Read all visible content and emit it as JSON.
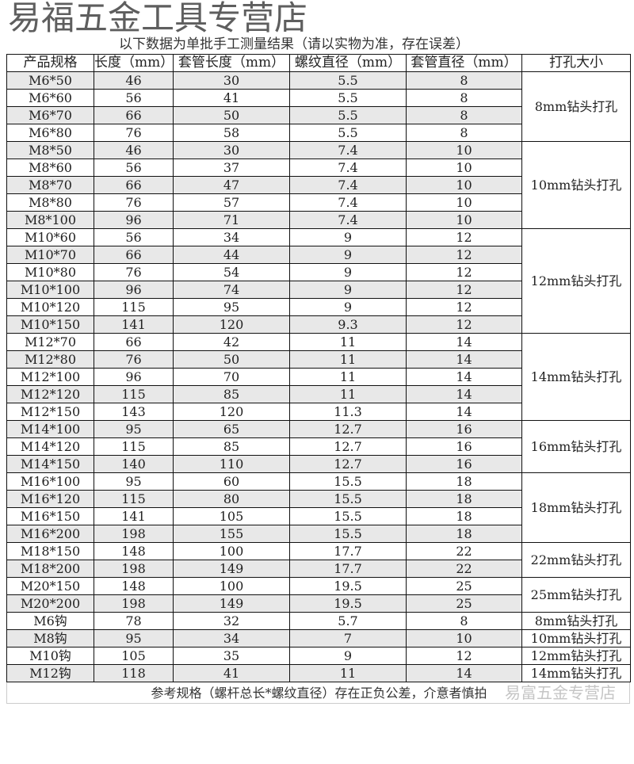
{
  "title": "以下数据为单批手工测量结果（请以实物为准，存在误差）",
  "watermark_top": "易福五金工具专营店",
  "watermark_bottom": "易富五金专营店",
  "headers": [
    "产品规格",
    "长度（mm）",
    "套管长度（mm）",
    "螺纹直径（mm）",
    "套管直径（mm）",
    "打孔大小"
  ],
  "rows": [
    [
      "M6*50",
      "46",
      "30",
      "5.5",
      "8"
    ],
    [
      "M6*60",
      "56",
      "41",
      "5.5",
      "8"
    ],
    [
      "M6*70",
      "66",
      "50",
      "5.5",
      "8"
    ],
    [
      "M6*80",
      "76",
      "58",
      "5.5",
      "8"
    ],
    [
      "M8*50",
      "46",
      "30",
      "7.4",
      "10"
    ],
    [
      "M8*60",
      "56",
      "37",
      "7.4",
      "10"
    ],
    [
      "M8*70",
      "66",
      "47",
      "7.4",
      "10"
    ],
    [
      "M8*80",
      "76",
      "57",
      "7.4",
      "10"
    ],
    [
      "M8*100",
      "96",
      "71",
      "7.4",
      "10"
    ],
    [
      "M10*60",
      "56",
      "34",
      "9",
      "12"
    ],
    [
      "M10*70",
      "66",
      "44",
      "9",
      "12"
    ],
    [
      "M10*80",
      "76",
      "54",
      "9",
      "12"
    ],
    [
      "M10*100",
      "96",
      "74",
      "9",
      "12"
    ],
    [
      "M10*120",
      "115",
      "95",
      "9",
      "12"
    ],
    [
      "M10*150",
      "141",
      "120",
      "9.3",
      "12"
    ],
    [
      "M12*70",
      "66",
      "42",
      "11",
      "14"
    ],
    [
      "M12*80",
      "76",
      "50",
      "11",
      "14"
    ],
    [
      "M12*100",
      "96",
      "70",
      "11",
      "14"
    ],
    [
      "M12*120",
      "115",
      "85",
      "11",
      "14"
    ],
    [
      "M12*150",
      "143",
      "120",
      "11.3",
      "14"
    ],
    [
      "M14*100",
      "95",
      "65",
      "12.7",
      "16"
    ],
    [
      "M14*120",
      "115",
      "85",
      "12.7",
      "16"
    ],
    [
      "M14*150",
      "140",
      "110",
      "12.7",
      "16"
    ],
    [
      "M16*100",
      "95",
      "60",
      "15.5",
      "18"
    ],
    [
      "M16*120",
      "115",
      "80",
      "15.5",
      "18"
    ],
    [
      "M16*150",
      "141",
      "105",
      "15.5",
      "18"
    ],
    [
      "M16*200",
      "198",
      "155",
      "15.5",
      "18"
    ],
    [
      "M18*150",
      "148",
      "100",
      "17.7",
      "22"
    ],
    [
      "M18*200",
      "198",
      "149",
      "17.7",
      "22"
    ],
    [
      "M20*150",
      "148",
      "100",
      "19.5",
      "25"
    ],
    [
      "M20*200",
      "198",
      "149",
      "19.5",
      "25"
    ],
    [
      "M6钩",
      "78",
      "32",
      "5.7",
      "8"
    ],
    [
      "M8钩",
      "95",
      "34",
      "7",
      "10"
    ],
    [
      "M10钩",
      "105",
      "35",
      "9",
      "12"
    ],
    [
      "M12钩",
      "118",
      "41",
      "11",
      "14"
    ]
  ],
  "drill_groups": [
    {
      "label": "8mm钻头打孔",
      "rows": 4
    },
    {
      "label": "10mm钻头打孔",
      "rows": 5
    },
    {
      "label": "12mm钻头打孔",
      "rows": 6
    },
    {
      "label": "14mm钻头打孔",
      "rows": 5
    },
    {
      "label": "16mm钻头打孔",
      "rows": 3
    },
    {
      "label": "18mm钻头打孔",
      "rows": 4
    },
    {
      "label": "22mm钻头打孔",
      "rows": 2
    },
    {
      "label": "25mm钻头打孔",
      "rows": 2
    },
    {
      "label": "8mm钻头打孔",
      "rows": 1
    },
    {
      "label": "10mm钻头打孔",
      "rows": 1
    },
    {
      "label": "12mm钻头打孔",
      "rows": 1
    },
    {
      "label": "14mm钻头打孔",
      "rows": 1
    }
  ],
  "footer": "参考规格（螺杆总长*螺纹直径）存在正负公差，介意者慎拍"
}
